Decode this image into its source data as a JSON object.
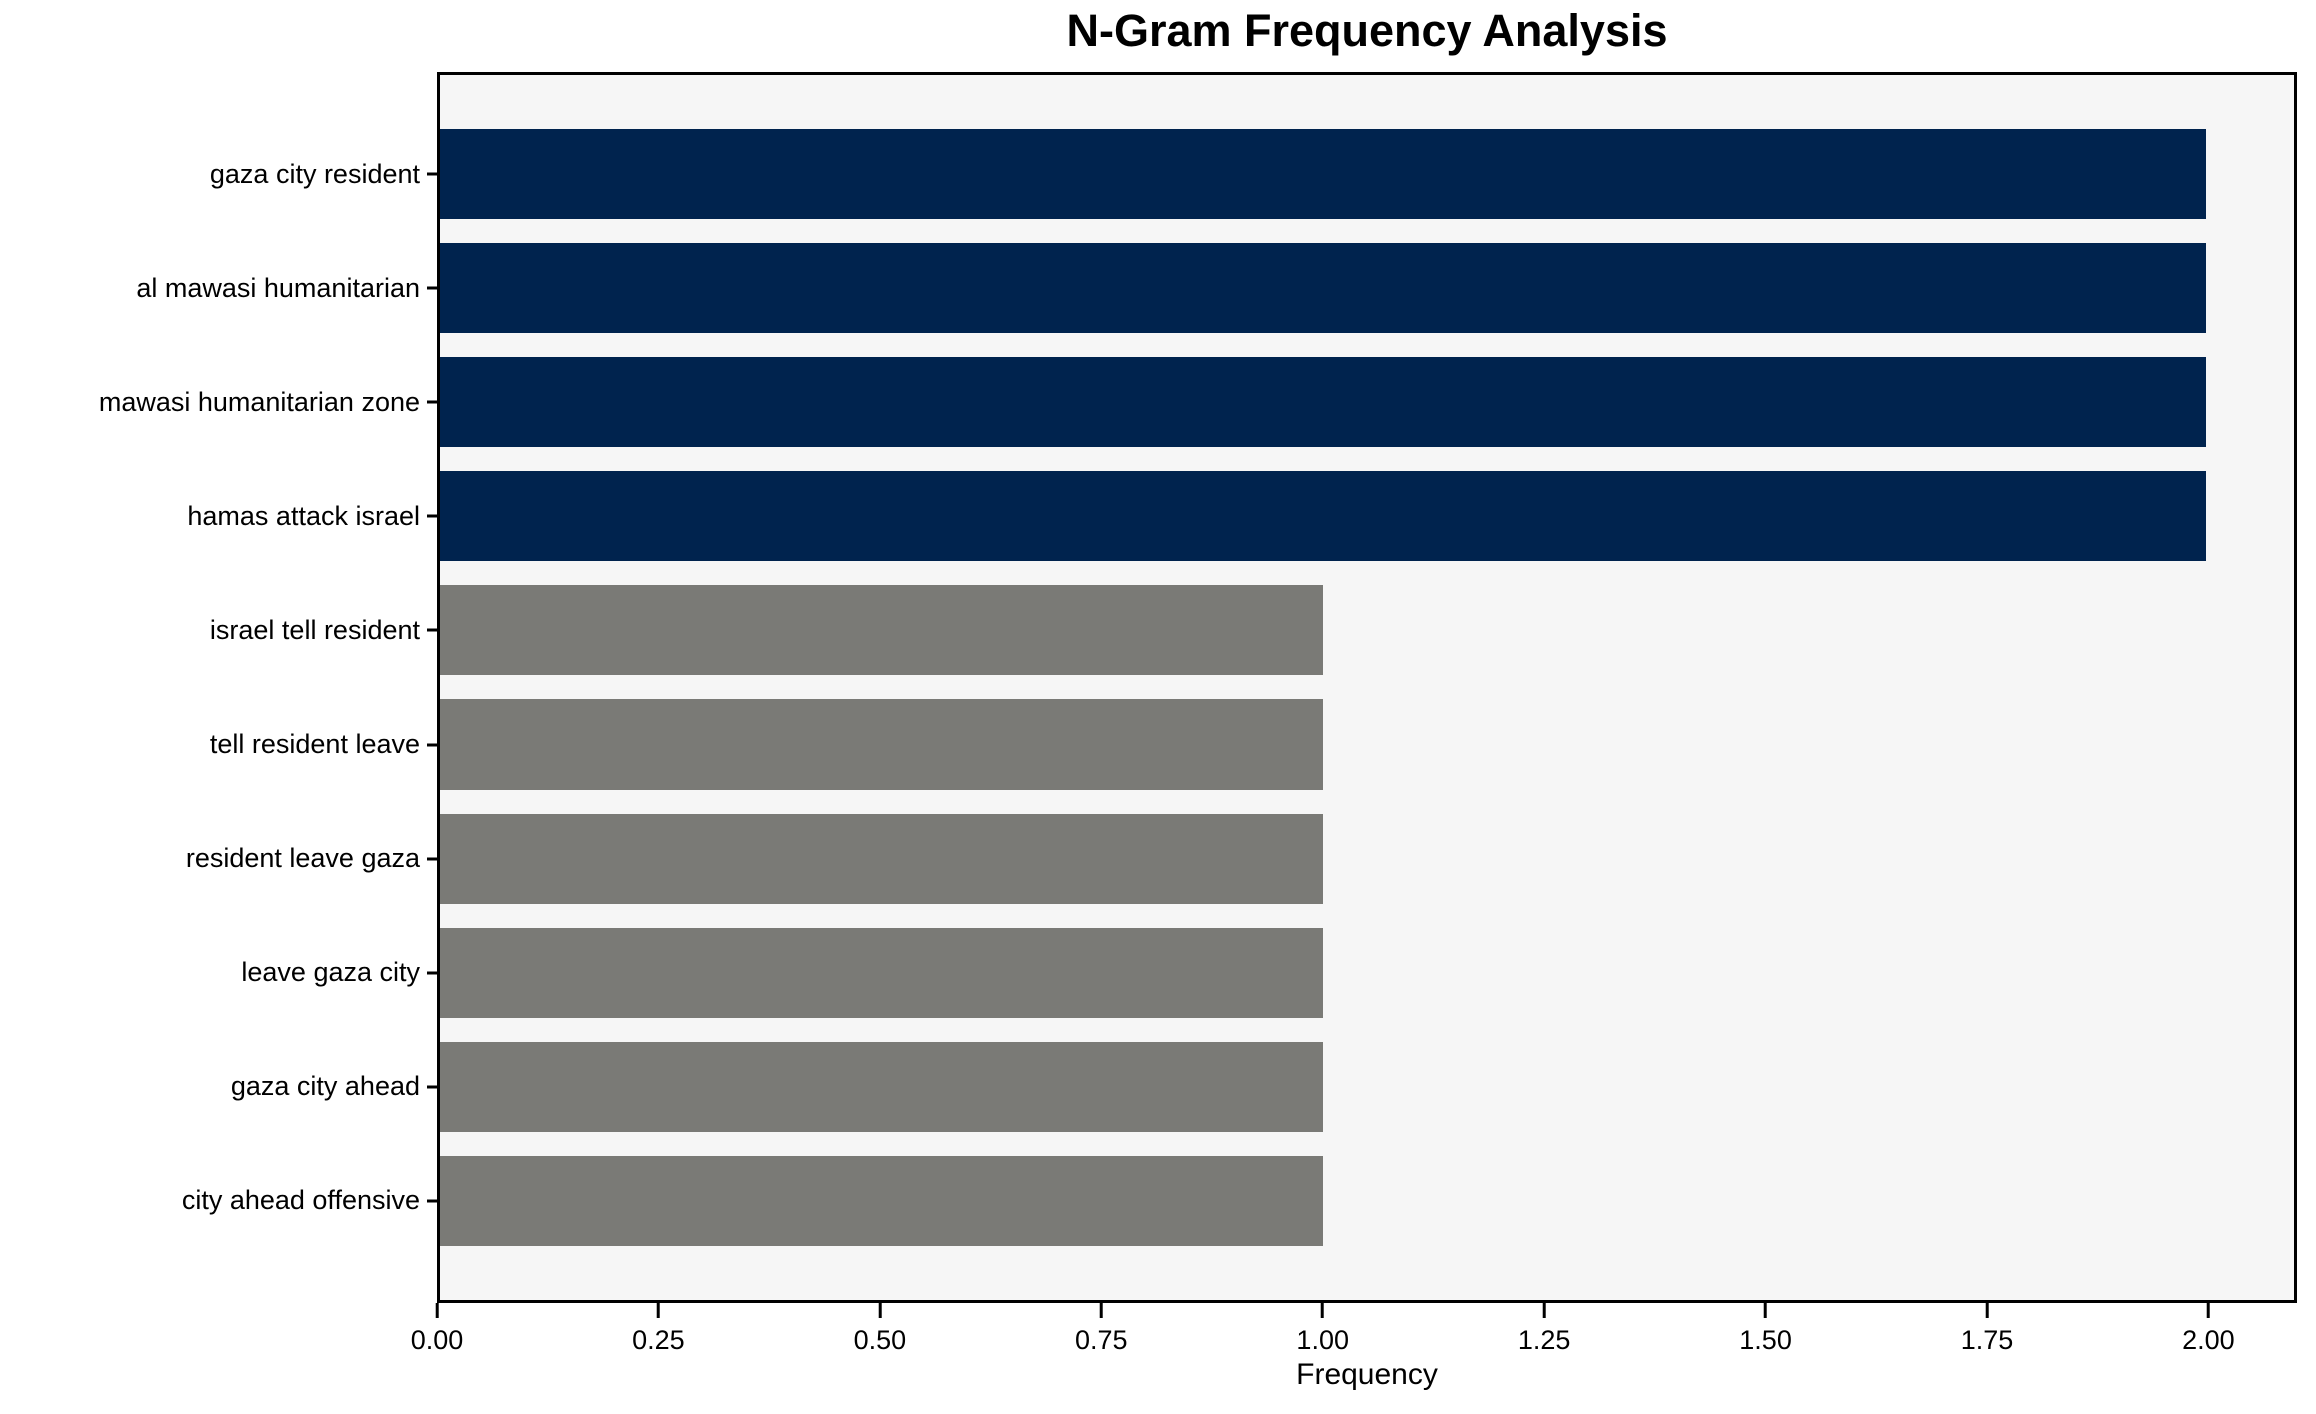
{
  "chart_data": {
    "type": "bar",
    "orientation": "horizontal",
    "title": "N-Gram Frequency Analysis",
    "xlabel": "Frequency",
    "ylabel": "",
    "categories": [
      "gaza city resident",
      "al mawasi humanitarian",
      "mawasi humanitarian zone",
      "hamas attack israel",
      "israel tell resident",
      "tell resident leave",
      "resident leave gaza",
      "leave gaza city",
      "gaza city ahead",
      "city ahead offensive"
    ],
    "values": [
      2,
      2,
      2,
      2,
      1,
      1,
      1,
      1,
      1,
      1
    ],
    "bar_colors": [
      "#00234E",
      "#00234E",
      "#00234E",
      "#00234E",
      "#7A7A76",
      "#7A7A76",
      "#7A7A76",
      "#7A7A76",
      "#7A7A76",
      "#7A7A76"
    ],
    "xlim": [
      0,
      2.1
    ],
    "xticks": [
      {
        "value": 0.0,
        "label": "0.00"
      },
      {
        "value": 0.25,
        "label": "0.25"
      },
      {
        "value": 0.5,
        "label": "0.50"
      },
      {
        "value": 0.75,
        "label": "0.75"
      },
      {
        "value": 1.0,
        "label": "1.00"
      },
      {
        "value": 1.25,
        "label": "1.25"
      },
      {
        "value": 1.5,
        "label": "1.50"
      },
      {
        "value": 1.75,
        "label": "1.75"
      },
      {
        "value": 2.0,
        "label": "2.00"
      }
    ],
    "grid": false,
    "legend": null,
    "colors": {
      "highlight_bar": "#00234E",
      "normal_bar": "#7A7A76",
      "plot_background": "#F6F6F6",
      "figure_background": "#FFFFFF",
      "spine": "#000000",
      "text": "#000000"
    }
  }
}
